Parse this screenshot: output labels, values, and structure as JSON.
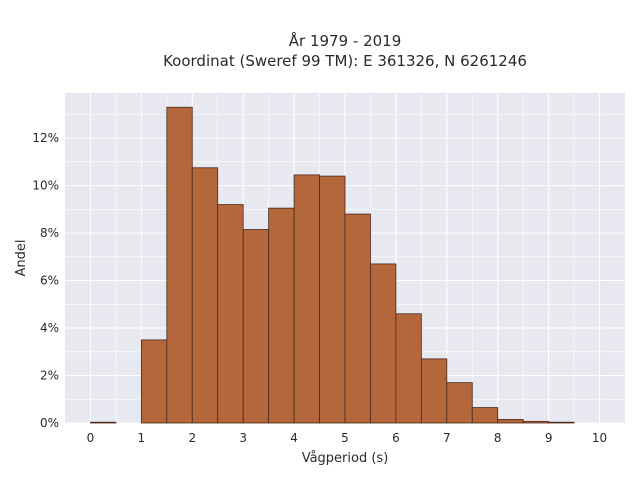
{
  "chart_data": {
    "type": "bar",
    "title_line1": "År 1979 - 2019",
    "title_line2": "Koordinat (Sweref 99 TM): E 361326, N 6261246",
    "xlabel": "Vågperiod (s)",
    "ylabel": "Andel",
    "bin_width": 0.5,
    "bins": [
      {
        "x0": 0.0,
        "x1": 0.5,
        "value": 0.0
      },
      {
        "x0": 1.0,
        "x1": 1.5,
        "value": 3.5
      },
      {
        "x0": 1.5,
        "x1": 2.0,
        "value": 13.3
      },
      {
        "x0": 2.0,
        "x1": 2.5,
        "value": 10.75
      },
      {
        "x0": 2.5,
        "x1": 3.0,
        "value": 9.2
      },
      {
        "x0": 3.0,
        "x1": 3.5,
        "value": 8.15
      },
      {
        "x0": 3.5,
        "x1": 4.0,
        "value": 9.05
      },
      {
        "x0": 4.0,
        "x1": 4.5,
        "value": 10.45
      },
      {
        "x0": 4.5,
        "x1": 5.0,
        "value": 10.4
      },
      {
        "x0": 5.0,
        "x1": 5.5,
        "value": 8.8
      },
      {
        "x0": 5.5,
        "x1": 6.0,
        "value": 6.7
      },
      {
        "x0": 6.0,
        "x1": 6.5,
        "value": 4.6
      },
      {
        "x0": 6.5,
        "x1": 7.0,
        "value": 2.7
      },
      {
        "x0": 7.0,
        "x1": 7.5,
        "value": 1.7
      },
      {
        "x0": 7.5,
        "x1": 8.0,
        "value": 0.65
      },
      {
        "x0": 8.0,
        "x1": 8.5,
        "value": 0.15
      },
      {
        "x0": 8.5,
        "x1": 9.0,
        "value": 0.07
      },
      {
        "x0": 9.0,
        "x1": 9.5,
        "value": 0.02
      }
    ],
    "xlim": [
      -0.5,
      10.5
    ],
    "ylim": [
      0,
      13.9
    ],
    "xticks": [
      0,
      1,
      2,
      3,
      4,
      5,
      6,
      7,
      8,
      9,
      10
    ],
    "xtick_labels": [
      "0",
      "1",
      "2",
      "3",
      "4",
      "5",
      "6",
      "7",
      "8",
      "9",
      "10"
    ],
    "yticks": [
      0,
      2,
      4,
      6,
      8,
      10,
      12
    ],
    "ytick_labels": [
      "0%",
      "2%",
      "4%",
      "6%",
      "8%",
      "10%",
      "12%"
    ],
    "grid": true,
    "colors": {
      "bar_fill": "#b5673c",
      "bar_stroke": "#4a2a1a",
      "plot_bg": "#e8e8f1",
      "grid": "#ffffff"
    }
  }
}
